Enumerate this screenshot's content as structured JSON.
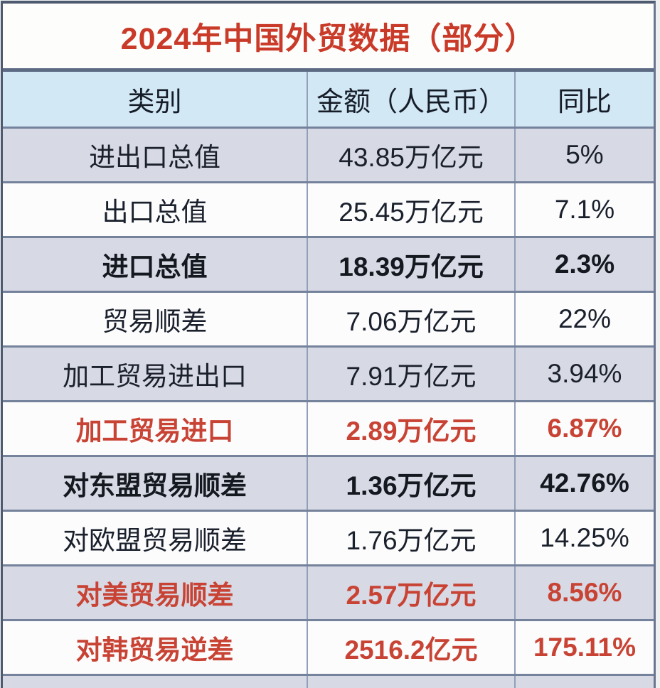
{
  "colors": {
    "title_red": "#c93a28",
    "highlight_red": "#c84334",
    "header_bg": "#d2e8f4",
    "row_alt_bg": "#d7d9e4",
    "row_bg": "#fcfcfd",
    "grid_line": "#75829c",
    "outer_border": "#4e5a70",
    "text": "#1a202c"
  },
  "chart_data": {
    "type": "table",
    "title": "2024年中国外贸数据（部分）",
    "columns": [
      "类别",
      "金额（人民币）",
      "同比"
    ],
    "rows": [
      {
        "category": "进出口总值",
        "amount": "43.85万亿元",
        "yoy": "5%",
        "emphasis": "none"
      },
      {
        "category": "出口总值",
        "amount": "25.45万亿元",
        "yoy": "7.1%",
        "emphasis": "none"
      },
      {
        "category": "进口总值",
        "amount": "18.39万亿元",
        "yoy": "2.3%",
        "emphasis": "bold"
      },
      {
        "category": "贸易顺差",
        "amount": "7.06万亿元",
        "yoy": "22%",
        "emphasis": "none"
      },
      {
        "category": "加工贸易进出口",
        "amount": "7.91万亿元",
        "yoy": "3.94%",
        "emphasis": "none"
      },
      {
        "category": "加工贸易进口",
        "amount": "2.89万亿元",
        "yoy": "6.87%",
        "emphasis": "red-bold"
      },
      {
        "category": "对东盟贸易顺差",
        "amount": "1.36万亿元",
        "yoy": "42.76%",
        "emphasis": "bold"
      },
      {
        "category": "对欧盟贸易顺差",
        "amount": "1.76万亿元",
        "yoy": "14.25%",
        "emphasis": "none"
      },
      {
        "category": "对美贸易顺差",
        "amount": "2.57万亿元",
        "yoy": "8.56%",
        "emphasis": "red-bold"
      },
      {
        "category": "对韩贸易逆差",
        "amount": "2516.2亿元",
        "yoy": "175.11%",
        "emphasis": "red-bold"
      }
    ]
  }
}
